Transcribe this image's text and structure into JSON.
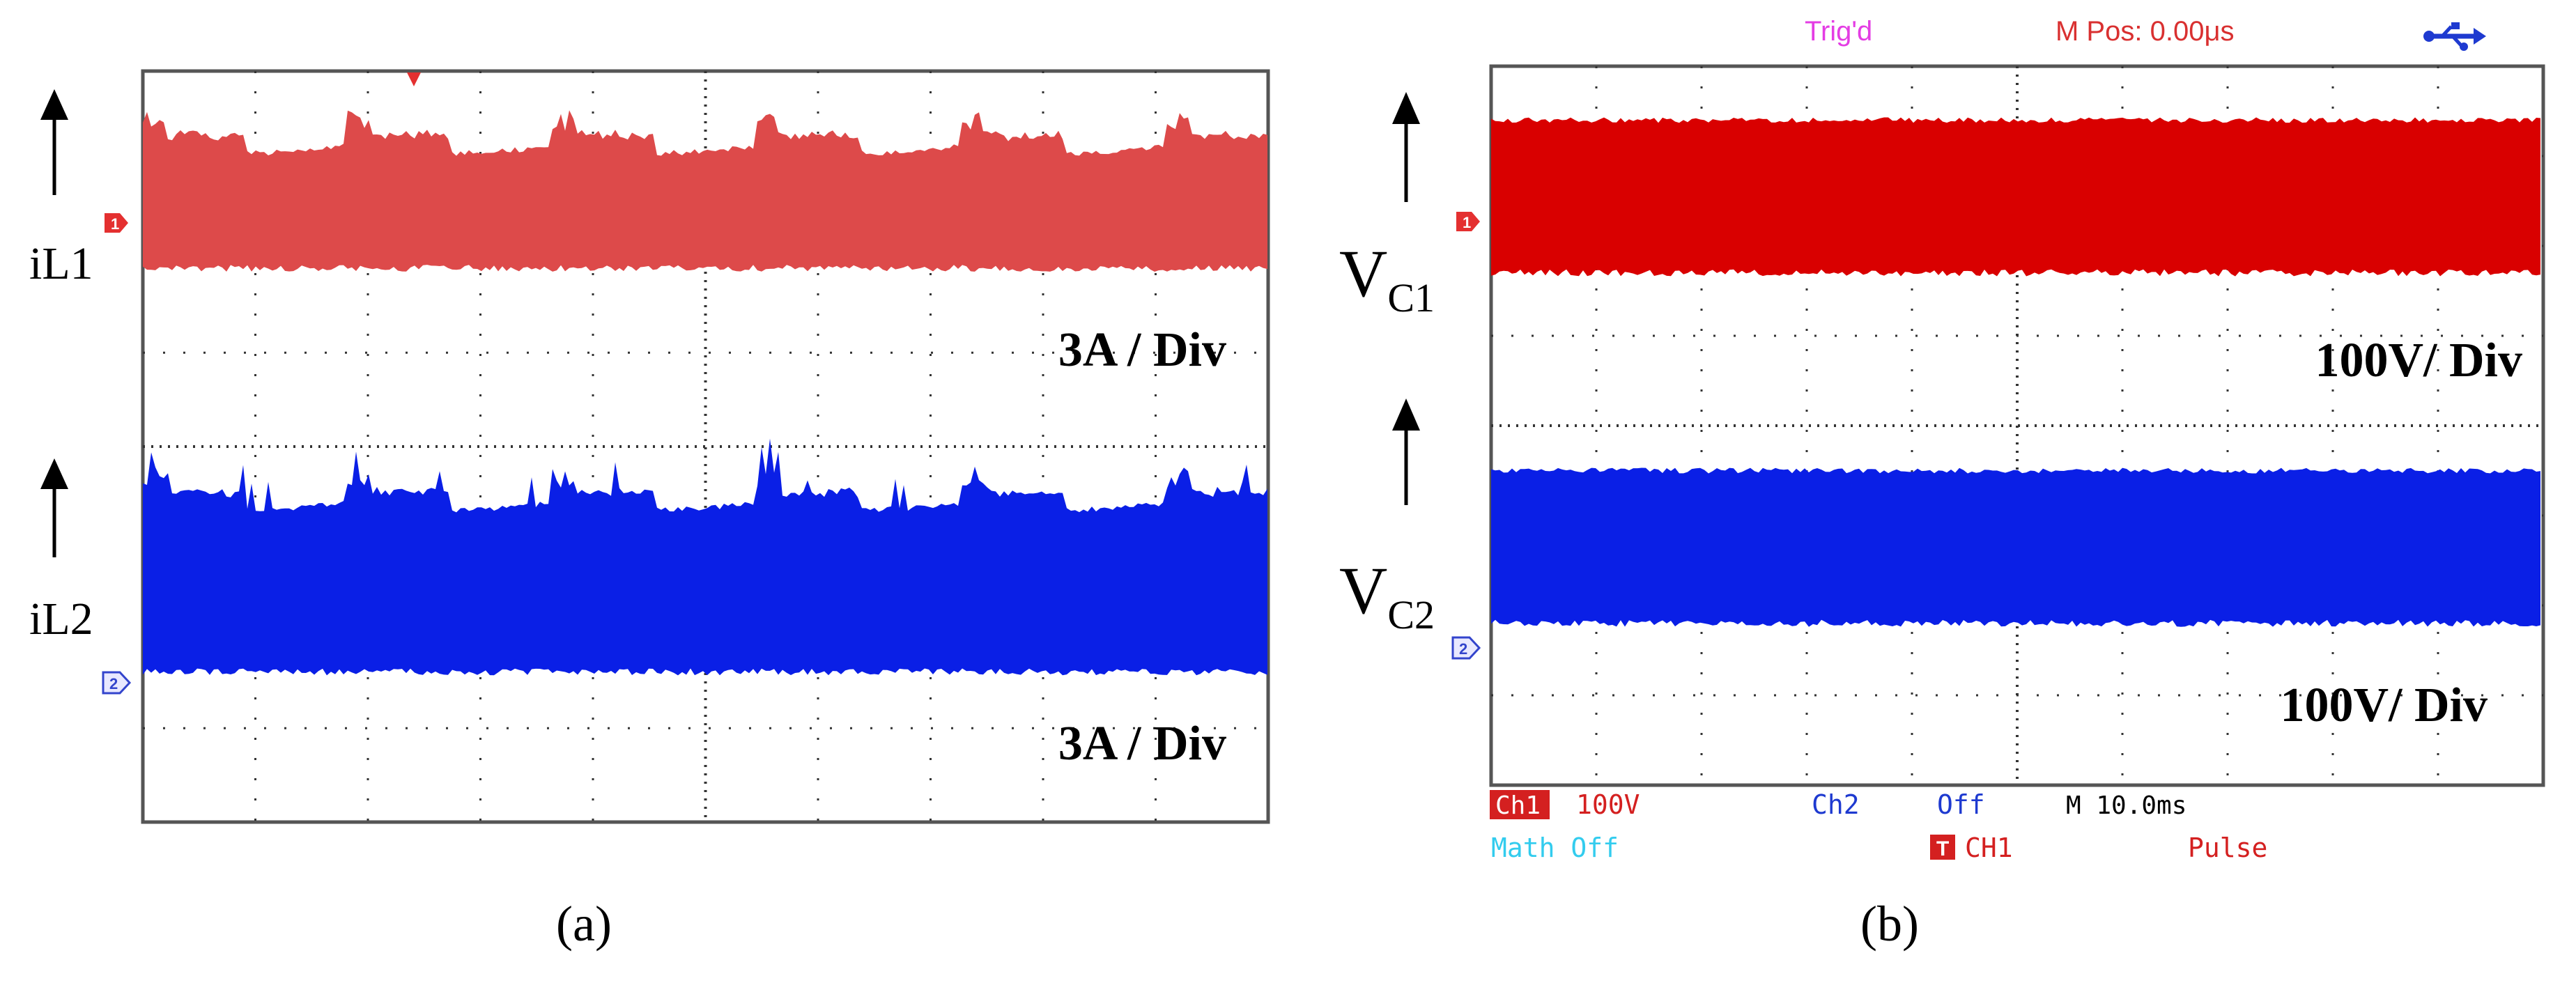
{
  "colors": {
    "ch1": "#d90000",
    "ch1_panel_a": "#dd4a4a",
    "ch2": "#0a1fe6",
    "grid": "#333333",
    "trig": "#e43de4",
    "mpos": "#d93030",
    "usb": "#1e3ad0",
    "status_red": "#d42020",
    "math_cyan": "#33ccee",
    "black": "#000000"
  },
  "icons": {
    "ch1_marker": "channel-1-marker",
    "ch2_marker": "channel-2-marker",
    "trigger_marker": "trigger-marker",
    "usb": "usb-icon",
    "trigger_badge": "trigger-badge-icon"
  },
  "chart_data": [
    {
      "type": "area",
      "panel": "a",
      "caption": "(a)",
      "grid": true,
      "divisions": {
        "x": 10,
        "y": 8
      },
      "series": [
        {
          "name": "iL1",
          "label_main": "iL",
          "label_sub": "1",
          "color": "#dd4a4a",
          "bottom_div": 5.9,
          "top_div": 7.2,
          "scale_label": "3A / Div"
        },
        {
          "name": "iL2",
          "label_main": "iL",
          "label_sub": "2",
          "color": "#0a1fe6",
          "bottom_div": 1.6,
          "top_div": 3.4,
          "scale_label": "3A / Div"
        }
      ]
    },
    {
      "type": "area",
      "panel": "b",
      "caption": "(b)",
      "grid": true,
      "divisions": {
        "x": 10,
        "y": 8
      },
      "header": {
        "trig": "Trig'd",
        "mpos": "M Pos: 0.00μs"
      },
      "series": [
        {
          "name": "VC1",
          "label_main": "V",
          "label_sub": "C1",
          "color": "#d90000",
          "bottom_div": 5.7,
          "top_div": 7.4,
          "scale_label": "100V/ Div"
        },
        {
          "name": "VC2",
          "label_main": "V",
          "label_sub": "C2",
          "color": "#0a1fe6",
          "bottom_div": 1.8,
          "top_div": 3.5,
          "scale_label": "100V/ Div"
        }
      ],
      "status": {
        "ch1_badge": "Ch1",
        "ch1_scale": "100V",
        "ch2": "Ch2",
        "ch2_state": "Off",
        "timebase": "M 10.0ms",
        "math": "Math Off",
        "trig_badge": "T",
        "trig_source": "CH1",
        "trig_mode": "Pulse"
      }
    }
  ]
}
